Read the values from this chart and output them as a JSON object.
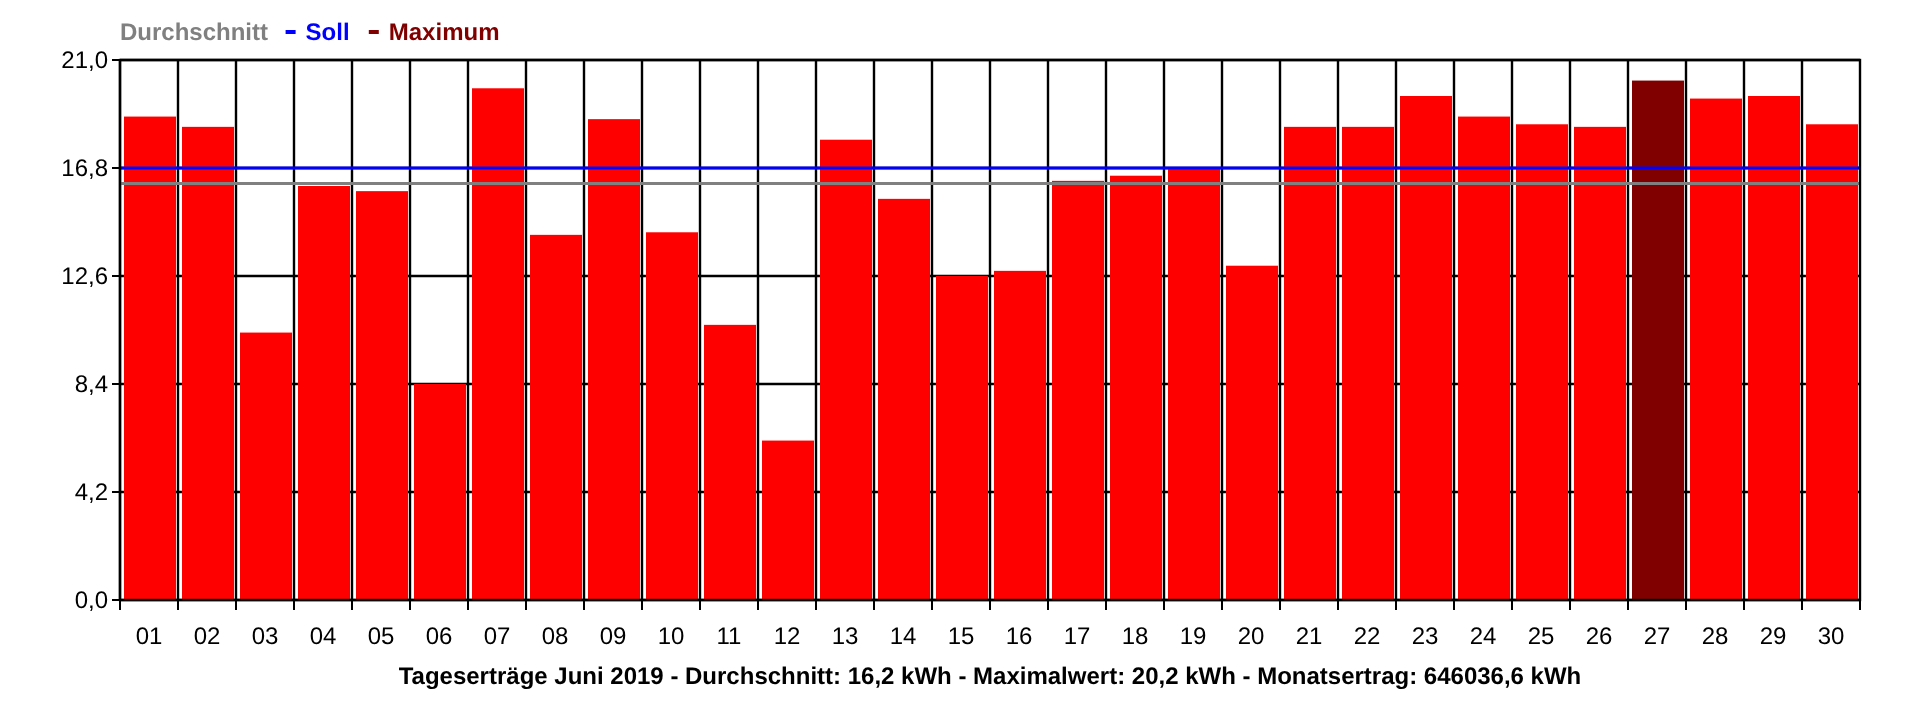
{
  "chart_data": {
    "type": "bar",
    "categories": [
      "01",
      "02",
      "03",
      "04",
      "05",
      "06",
      "07",
      "08",
      "09",
      "10",
      "11",
      "12",
      "13",
      "14",
      "15",
      "16",
      "17",
      "18",
      "19",
      "20",
      "21",
      "22",
      "23",
      "24",
      "25",
      "26",
      "27",
      "28",
      "29",
      "30"
    ],
    "series": [
      {
        "color": "#ff0000",
        "values": [
          18.8,
          18.4,
          10.4,
          16.1,
          15.9,
          8.4,
          19.9,
          14.2,
          18.7,
          14.3,
          10.7,
          6.2,
          17.9,
          15.6,
          12.6,
          12.8,
          16.3,
          16.5,
          16.8,
          13.0,
          18.4,
          18.4,
          19.6,
          18.8,
          18.5,
          18.4,
          null,
          19.5,
          19.6,
          18.5
        ]
      },
      {
        "name": "Maximum",
        "color": "#800000",
        "values": [
          null,
          null,
          null,
          null,
          null,
          null,
          null,
          null,
          null,
          null,
          null,
          null,
          null,
          null,
          null,
          null,
          null,
          null,
          null,
          null,
          null,
          null,
          null,
          null,
          null,
          null,
          20.2,
          null,
          null,
          null
        ]
      }
    ],
    "ylim": [
      0,
      21
    ],
    "yticks": [
      {
        "value": 0,
        "label": "0,0"
      },
      {
        "value": 4.2,
        "label": "4,2"
      },
      {
        "value": 8.4,
        "label": "8,4"
      },
      {
        "value": 12.6,
        "label": "12,6"
      },
      {
        "value": 16.8,
        "label": "16,8"
      },
      {
        "value": 21,
        "label": "21,0"
      }
    ],
    "grid": true,
    "legend": "top left",
    "ref_lines": [
      {
        "axis": "y",
        "value": 16.2,
        "label": "Durchschnitt",
        "color": "#808080"
      },
      {
        "axis": "y",
        "value": 16.8,
        "label": "Soll",
        "color": "#0000ff"
      }
    ],
    "annotations": [
      "Tageserträge Juni 2019 - Durchschnitt: 16,2 kWh - Maximalwert: 20,2 kWh - Monatsertrag: 646036,6 kWh"
    ]
  }
}
